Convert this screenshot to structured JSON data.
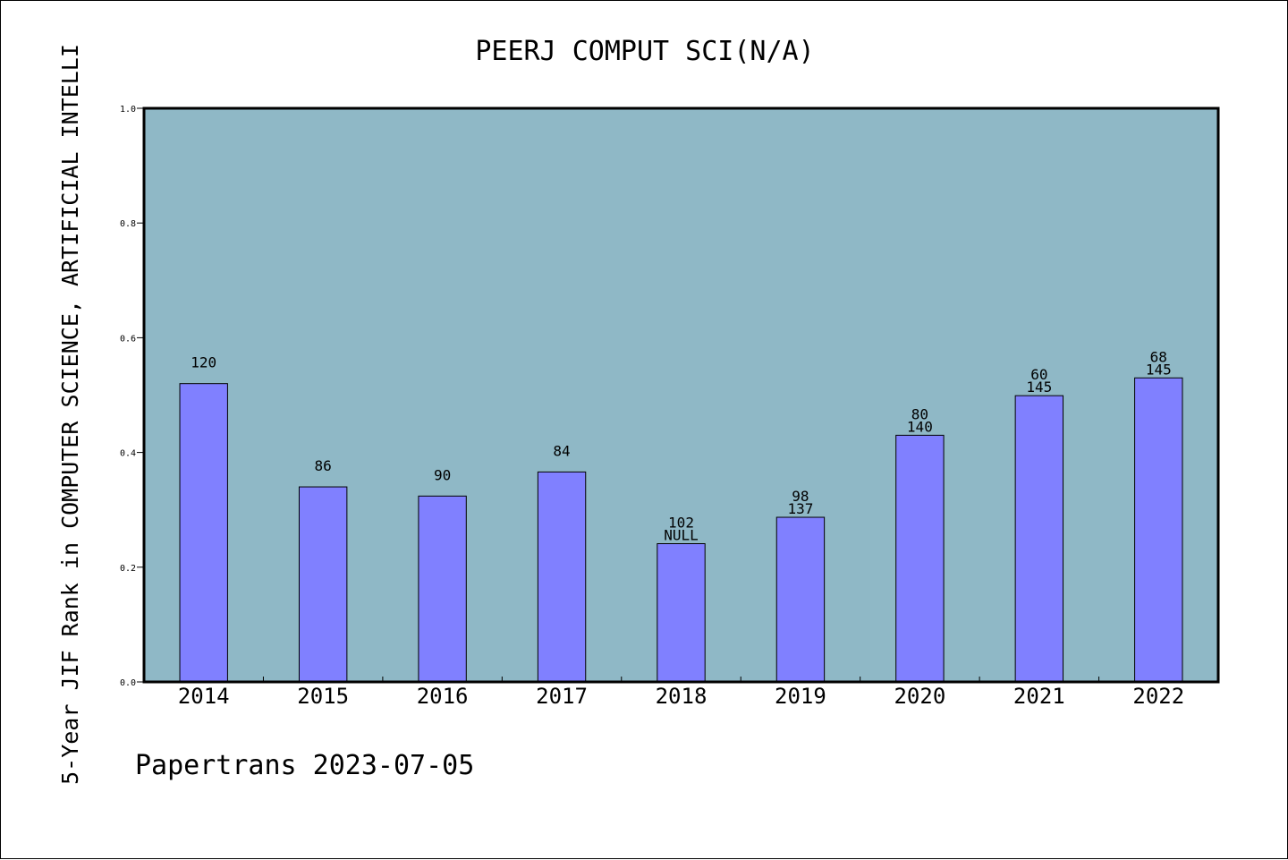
{
  "chart_data": {
    "type": "bar",
    "title": "PEERJ COMPUT SCI(N/A)",
    "ylabel": "5-Year JIF Rank in COMPUTER SCIENCE, ARTIFICIAL INTELLI",
    "xlabel": "",
    "categories": [
      "2014",
      "2015",
      "2016",
      "2017",
      "2018",
      "2019",
      "2020",
      "2021",
      "2022"
    ],
    "values": [
      0.52,
      0.34,
      0.324,
      0.366,
      0.241,
      0.287,
      0.43,
      0.499,
      0.53
    ],
    "bar_labels": [
      [
        "120"
      ],
      [
        "86"
      ],
      [
        "90"
      ],
      [
        "84"
      ],
      [
        "102",
        "NULL"
      ],
      [
        "98",
        "137"
      ],
      [
        "80",
        "140"
      ],
      [
        "60",
        "145"
      ],
      [
        "68",
        "145"
      ]
    ],
    "ylim": [
      0.0,
      1.0
    ],
    "yticks": [
      0.0,
      0.2,
      0.4,
      0.6,
      0.8,
      1.0
    ],
    "ytick_labels": [
      "0.0",
      "0.2",
      "0.4",
      "0.6",
      "0.8",
      "1.0"
    ],
    "grid": false,
    "colors": {
      "plot_background": "#8fb8c6",
      "bar_fill": "#8080ff",
      "bar_stroke": "#000000",
      "axis": "#000000"
    }
  },
  "footer": {
    "text": "Papertrans 2023-07-05"
  }
}
